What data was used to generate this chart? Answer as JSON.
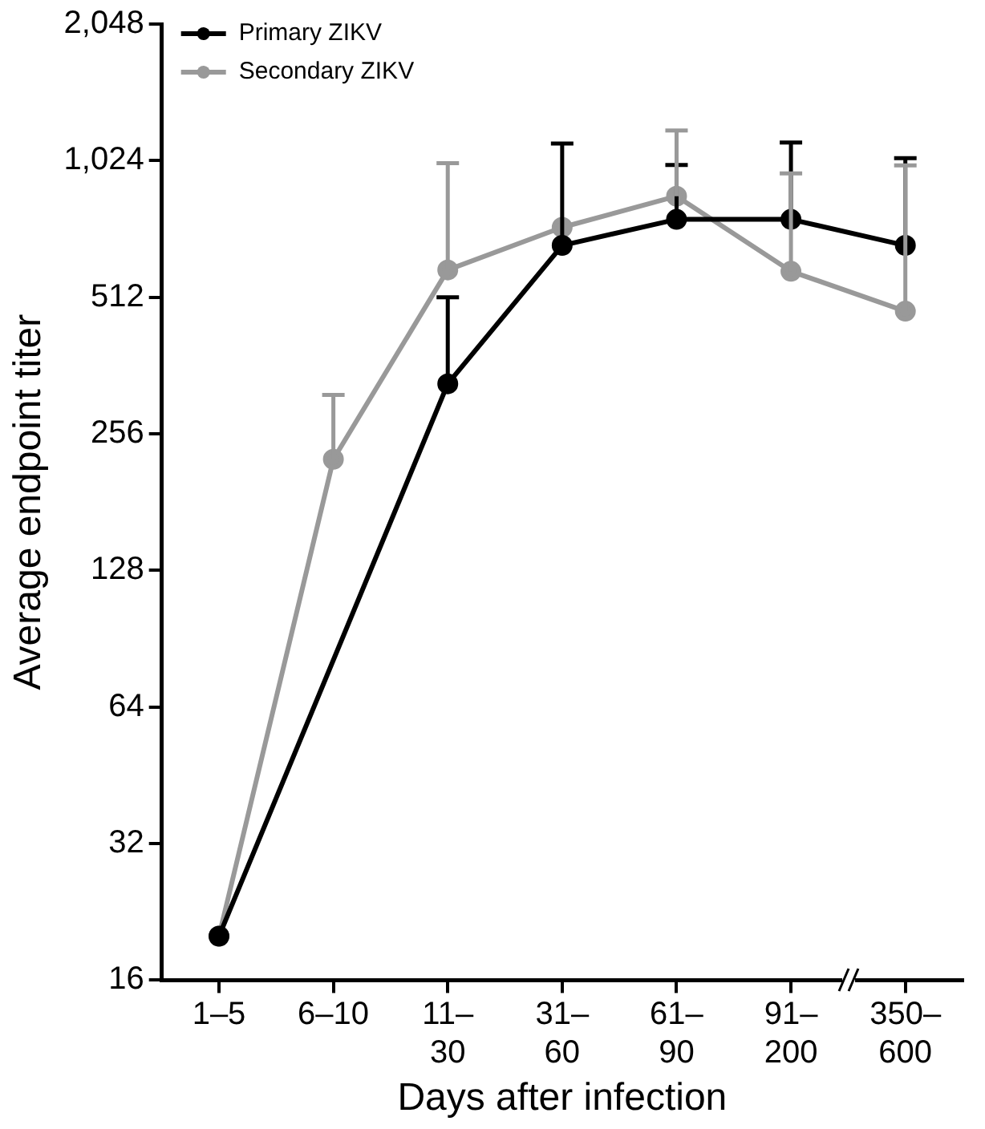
{
  "chart_data": {
    "type": "line",
    "xlabel": "Days after infection",
    "ylabel": "Average endpoint titer",
    "categories": [
      "1–5",
      "6–10",
      "11–\n30",
      "31–\n60",
      "61–\n90",
      "91–\n200",
      "350–\n600"
    ],
    "series": [
      {
        "name": "Primary ZIKV",
        "color": "#000000",
        "values": [
          20,
          null,
          330,
          666,
          760,
          760,
          666
        ],
        "errors": [
          null,
          null,
          [
            330,
            512
          ],
          [
            666,
            1117
          ],
          [
            760,
            1002
          ],
          [
            760,
            1123
          ],
          [
            666,
            1037
          ]
        ]
      },
      {
        "name": "Secondary ZIKV",
        "color": "#999999",
        "values": [
          20,
          225,
          588,
          730,
          855,
          584,
          477
        ],
        "errors": [
          null,
          [
            225,
            312
          ],
          [
            588,
            1011
          ],
          null,
          [
            855,
            1193
          ],
          [
            584,
            960
          ],
          [
            477,
            1000
          ]
        ]
      }
    ],
    "log": "y",
    "ylim": [
      16,
      2048
    ],
    "yticks": [
      16,
      32,
      64,
      128,
      256,
      512,
      {
        "value": 1024,
        "label": "1,024"
      },
      {
        "value": 2048,
        "label": "2,048"
      }
    ],
    "grid": false,
    "legend": "top left",
    "marker": "circle",
    "line_style": "solid"
  }
}
